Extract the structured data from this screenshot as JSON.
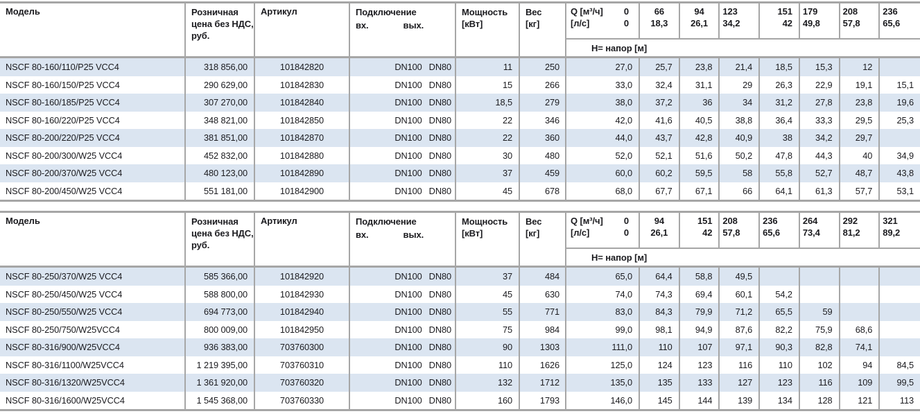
{
  "colors": {
    "stripe": "#dbe5f1",
    "border": "#a6a6a6",
    "text": "#1b1b1f"
  },
  "tables": [
    {
      "header": {
        "model": "Модель",
        "price_lines": [
          "Розничная",
          "цена без НДС,",
          "руб."
        ],
        "article": "Артикул",
        "connection": "Подключение",
        "conn_in": "вх.",
        "conn_out": "вых.",
        "power_lines": [
          "Мощность",
          "[кВт]"
        ],
        "weight_lines": [
          "Вес",
          "[кг]"
        ],
        "q_label": "Q [м³/ч]",
        "q_zero": "0",
        "ls_label": "[л/с]",
        "ls_zero": "0",
        "head_band": "H= напор [м]",
        "q_cols": [
          {
            "q": "66",
            "ls": "18,3"
          },
          {
            "q": "94",
            "ls": "26,1"
          },
          {
            "q": "123",
            "ls": "34,2"
          },
          {
            "q": "151",
            "ls": "42"
          },
          {
            "q": "179",
            "ls": "49,8"
          },
          {
            "q": "208",
            "ls": "57,8"
          },
          {
            "q": "236",
            "ls": "65,6"
          }
        ]
      },
      "rows": [
        {
          "model": "NSCF 80-160/110/P25 VCC4",
          "price": "318 856,00",
          "article": "101842820",
          "dn_in": "DN100",
          "dn_out": "DN80",
          "power": "11",
          "weight": "250",
          "h": [
            "27,0",
            "25,7",
            "23,8",
            "21,4",
            "18,5",
            "15,3",
            "12",
            ""
          ]
        },
        {
          "model": "NSCF 80-160/150/P25 VCC4",
          "price": "290 629,00",
          "article": "101842830",
          "dn_in": "DN100",
          "dn_out": "DN80",
          "power": "15",
          "weight": "266",
          "h": [
            "33,0",
            "32,4",
            "31,1",
            "29",
            "26,3",
            "22,9",
            "19,1",
            "15,1"
          ]
        },
        {
          "model": "NSCF 80-160/185/P25 VCC4",
          "price": "307 270,00",
          "article": "101842840",
          "dn_in": "DN100",
          "dn_out": "DN80",
          "power": "18,5",
          "weight": "279",
          "h": [
            "38,0",
            "37,2",
            "36",
            "34",
            "31,2",
            "27,8",
            "23,8",
            "19,6"
          ]
        },
        {
          "model": "NSCF 80-160/220/P25 VCC4",
          "price": "348 821,00",
          "article": "101842850",
          "dn_in": "DN100",
          "dn_out": "DN80",
          "power": "22",
          "weight": "346",
          "h": [
            "42,0",
            "41,6",
            "40,5",
            "38,8",
            "36,4",
            "33,3",
            "29,5",
            "25,3"
          ]
        },
        {
          "model": "NSCF 80-200/220/P25 VCC4",
          "price": "381 851,00",
          "article": "101842870",
          "dn_in": "DN100",
          "dn_out": "DN80",
          "power": "22",
          "weight": "360",
          "h": [
            "44,0",
            "43,7",
            "42,8",
            "40,9",
            "38",
            "34,2",
            "29,7",
            ""
          ]
        },
        {
          "model": "NSCF 80-200/300/W25 VCC4",
          "price": "452 832,00",
          "article": "101842880",
          "dn_in": "DN100",
          "dn_out": "DN80",
          "power": "30",
          "weight": "480",
          "h": [
            "52,0",
            "52,1",
            "51,6",
            "50,2",
            "47,8",
            "44,3",
            "40",
            "34,9"
          ]
        },
        {
          "model": "NSCF 80-200/370/W25 VCC4",
          "price": "480 123,00",
          "article": "101842890",
          "dn_in": "DN100",
          "dn_out": "DN80",
          "power": "37",
          "weight": "459",
          "h": [
            "60,0",
            "60,2",
            "59,5",
            "58",
            "55,8",
            "52,7",
            "48,7",
            "43,8"
          ]
        },
        {
          "model": "NSCF 80-200/450/W25 VCC4",
          "price": "551 181,00",
          "article": "101842900",
          "dn_in": "DN100",
          "dn_out": "DN80",
          "power": "45",
          "weight": "678",
          "h": [
            "68,0",
            "67,7",
            "67,1",
            "66",
            "64,1",
            "61,3",
            "57,7",
            "53,1"
          ]
        }
      ]
    },
    {
      "header": {
        "model": "Модель",
        "price_lines": [
          "Розничная",
          "цена без НДС,",
          "руб."
        ],
        "article": "Артикул",
        "connection": "Подключение",
        "conn_in": "вх.",
        "conn_out": "вых.",
        "power_lines": [
          "Мощность",
          "[кВт]"
        ],
        "weight_lines": [
          "Вес",
          "[кг]"
        ],
        "q_label": "Q [м³/ч]",
        "q_zero": "0",
        "ls_label": "[л/с]",
        "ls_zero": "0",
        "head_band": "H= напор [м]",
        "q_cols": [
          {
            "q": "94",
            "ls": "26,1"
          },
          {
            "q": "151",
            "ls": "42"
          },
          {
            "q": "208",
            "ls": "57,8"
          },
          {
            "q": "236",
            "ls": "65,6"
          },
          {
            "q": "264",
            "ls": "73,4"
          },
          {
            "q": "292",
            "ls": "81,2"
          },
          {
            "q": "321",
            "ls": "89,2"
          }
        ]
      },
      "rows": [
        {
          "model": "NSCF 80-250/370/W25 VCC4",
          "price": "585 366,00",
          "article": "101842920",
          "dn_in": "DN100",
          "dn_out": "DN80",
          "power": "37",
          "weight": "484",
          "h": [
            "65,0",
            "64,4",
            "58,8",
            "49,5",
            "",
            "",
            "",
            ""
          ]
        },
        {
          "model": "NSCF 80-250/450/W25 VCC4",
          "price": "588 800,00",
          "article": "101842930",
          "dn_in": "DN100",
          "dn_out": "DN80",
          "power": "45",
          "weight": "630",
          "h": [
            "74,0",
            "74,3",
            "69,4",
            "60,1",
            "54,2",
            "",
            "",
            ""
          ]
        },
        {
          "model": "NSCF 80-250/550/W25 VCC4",
          "price": "694 773,00",
          "article": "101842940",
          "dn_in": "DN100",
          "dn_out": "DN80",
          "power": "55",
          "weight": "771",
          "h": [
            "83,0",
            "84,3",
            "79,9",
            "71,2",
            "65,5",
            "59",
            "",
            ""
          ]
        },
        {
          "model": "NSCF 80-250/750/W25VCC4",
          "price": "800 009,00",
          "article": "101842950",
          "dn_in": "DN100",
          "dn_out": "DN80",
          "power": "75",
          "weight": "984",
          "h": [
            "99,0",
            "98,1",
            "94,9",
            "87,6",
            "82,2",
            "75,9",
            "68,6",
            ""
          ]
        },
        {
          "model": "NSCF 80-316/900/W25VCC4",
          "price": "936 383,00",
          "article": "703760300",
          "dn_in": "DN100",
          "dn_out": "DN80",
          "power": "90",
          "weight": "1303",
          "h": [
            "111,0",
            "110",
            "107",
            "97,1",
            "90,3",
            "82,8",
            "74,1",
            ""
          ]
        },
        {
          "model": "NSCF 80-316/1100/W25VCC4",
          "price": "1 219 395,00",
          "article": "703760310",
          "dn_in": "DN100",
          "dn_out": "DN80",
          "power": "110",
          "weight": "1626",
          "h": [
            "125,0",
            "124",
            "123",
            "116",
            "110",
            "102",
            "94",
            "84,5"
          ]
        },
        {
          "model": "NSCF 80-316/1320/W25VCC4",
          "price": "1 361 920,00",
          "article": "703760320",
          "dn_in": "DN100",
          "dn_out": "DN80",
          "power": "132",
          "weight": "1712",
          "h": [
            "135,0",
            "135",
            "133",
            "127",
            "123",
            "116",
            "109",
            "99,5"
          ]
        },
        {
          "model": "NSCF 80-316/1600/W25VCC4",
          "price": "1 545 368,00",
          "article": "703760330",
          "dn_in": "DN100",
          "dn_out": "DN80",
          "power": "160",
          "weight": "1793",
          "h": [
            "146,0",
            "145",
            "144",
            "139",
            "134",
            "128",
            "121",
            "113"
          ]
        }
      ]
    }
  ]
}
